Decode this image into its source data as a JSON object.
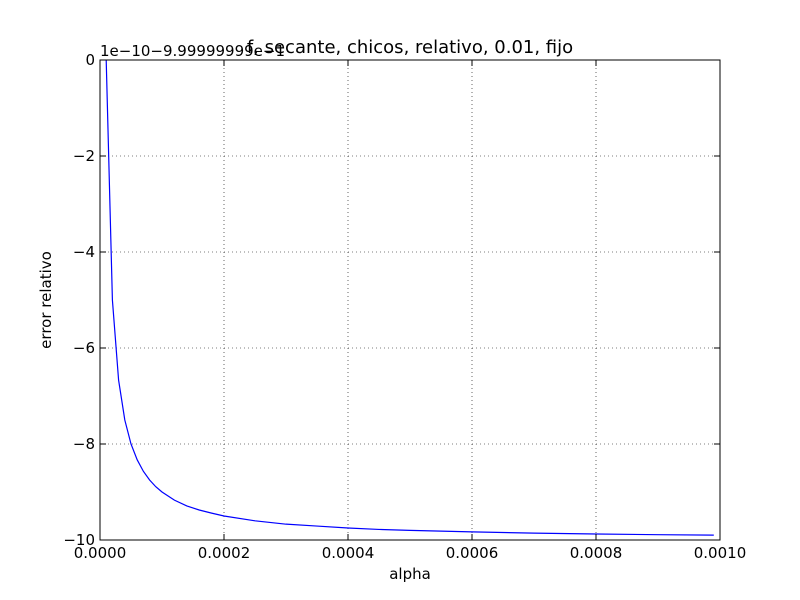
{
  "chart_data": {
    "type": "line",
    "title": "f, secante, chicos, relativo, 0.01, fijo",
    "xlabel": "alpha",
    "ylabel": "error relativo",
    "y_offset_text": "1e−10−9.99999999e−1",
    "xlim": [
      0.0,
      0.001
    ],
    "ylim": [
      -10,
      0
    ],
    "grid": true,
    "x_ticks": [
      0.0,
      0.0002,
      0.0004,
      0.0006,
      0.0008,
      0.001
    ],
    "x_tick_labels": [
      "0.0000",
      "0.0002",
      "0.0004",
      "0.0006",
      "0.0008",
      "0.0010"
    ],
    "y_ticks": [
      0,
      -2,
      -4,
      -6,
      -8,
      -10
    ],
    "y_tick_labels": [
      "0",
      "−2",
      "−4",
      "−6",
      "−8",
      "−10"
    ],
    "series": [
      {
        "color": "#0000ff",
        "x": [
          1e-05,
          2e-05,
          3e-05,
          4e-05,
          5e-05,
          6e-05,
          7e-05,
          8e-05,
          9e-05,
          0.0001,
          0.00012,
          0.00014,
          0.00016,
          0.00018,
          0.0002,
          0.00025,
          0.0003,
          0.00035,
          0.0004,
          0.00045,
          0.0005,
          0.0006,
          0.0007,
          0.0008,
          0.0009,
          0.00099
        ],
        "y": [
          0.0,
          -5.0,
          -6.67,
          -7.5,
          -8.0,
          -8.33,
          -8.57,
          -8.75,
          -8.89,
          -9.0,
          -9.17,
          -9.29,
          -9.375,
          -9.44,
          -9.5,
          -9.6,
          -9.67,
          -9.71,
          -9.75,
          -9.78,
          -9.8,
          -9.83,
          -9.857,
          -9.875,
          -9.889,
          -9.899
        ]
      }
    ]
  }
}
